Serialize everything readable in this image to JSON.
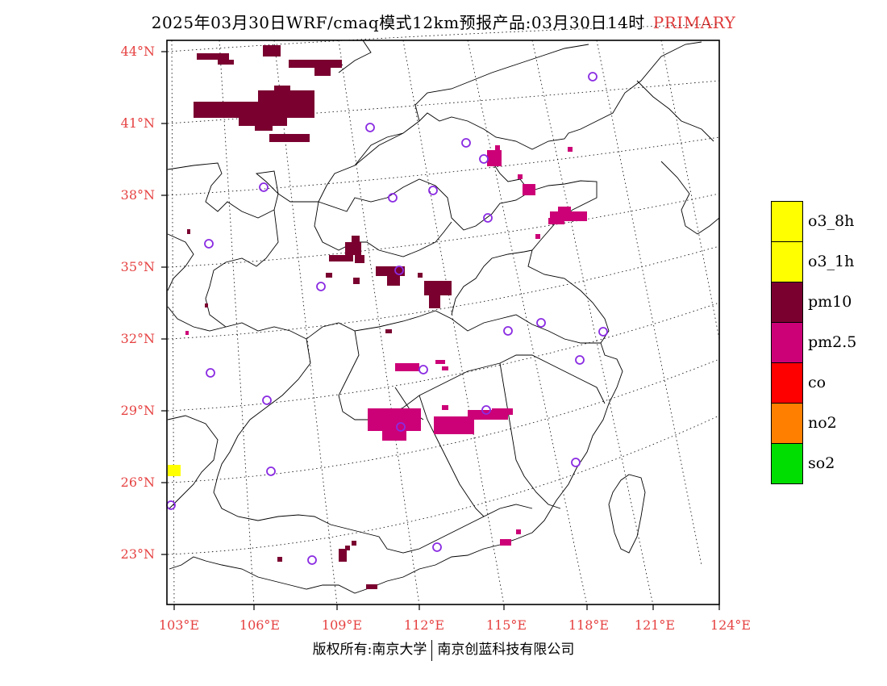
{
  "title": {
    "main": "2025年03月30日WRF/cmaq模式12km预报产品:03月30日14时",
    "tag": "PRIMARY"
  },
  "axes": {
    "lat_labels": [
      "44°N",
      "41°N",
      "38°N",
      "35°N",
      "32°N",
      "29°N",
      "26°N",
      "23°N"
    ],
    "lon_labels": [
      "103°E",
      "106°E",
      "109°E",
      "112°E",
      "115°E",
      "118°E",
      "121°E",
      "124°E"
    ]
  },
  "legend": [
    {
      "label": "o3_8h",
      "color": "#ffff00"
    },
    {
      "label": "o3_1h",
      "color": "#ffff00"
    },
    {
      "label": "pm10",
      "color": "#7a0030"
    },
    {
      "label": "pm2.5",
      "color": "#cc0077"
    },
    {
      "label": "co",
      "color": "#ff0000"
    },
    {
      "label": "no2",
      "color": "#ff7f00"
    },
    {
      "label": "so2",
      "color": "#00dd00"
    }
  ],
  "colors": {
    "axis_label": "#e64141",
    "station_marker": "#8a2be2",
    "pm10": "#7a0030",
    "pm25": "#cc0077",
    "o3": "#ffff00"
  },
  "footer": {
    "left": "版权所有:南京大学",
    "right": "南京创蓝科技有限公司"
  }
}
